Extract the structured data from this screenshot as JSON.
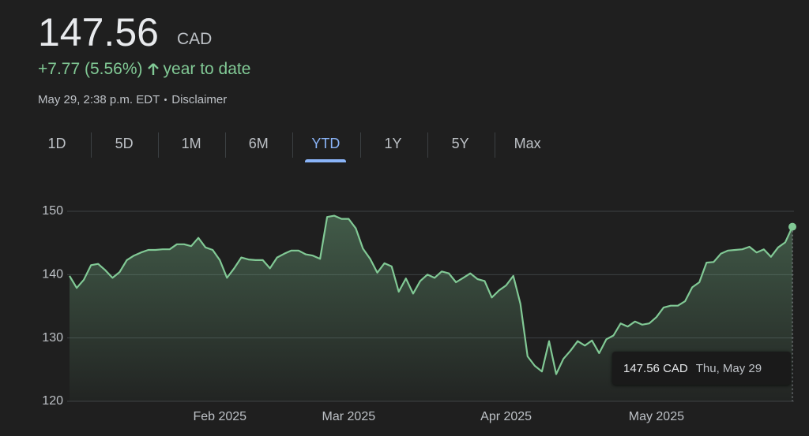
{
  "quote": {
    "price": "147.56",
    "currency": "CAD",
    "change": "+7.77 (5.56%)",
    "period": "year to date",
    "timestamp": "May 29, 2:38 p.m. EDT",
    "disclaimer": "Disclaimer"
  },
  "tabs": {
    "items": [
      "1D",
      "5D",
      "1M",
      "6M",
      "YTD",
      "1Y",
      "5Y",
      "Max"
    ],
    "selected": 4
  },
  "chart_data": {
    "type": "line",
    "color": "#81c995",
    "grid": true,
    "categories": [
      null,
      null,
      null,
      null,
      null,
      null,
      null,
      null,
      null,
      null,
      null,
      null,
      null,
      null,
      null,
      null,
      null,
      null,
      null,
      null,
      null,
      "Feb 2025",
      null,
      null,
      null,
      null,
      null,
      null,
      null,
      null,
      null,
      null,
      null,
      null,
      null,
      null,
      null,
      null,
      null,
      "Mar 2025",
      null,
      null,
      null,
      null,
      null,
      null,
      null,
      null,
      null,
      null,
      null,
      null,
      null,
      null,
      null,
      null,
      null,
      null,
      null,
      null,
      null,
      "Apr 2025",
      null,
      null,
      null,
      null,
      null,
      null,
      null,
      null,
      null,
      null,
      null,
      null,
      null,
      null,
      null,
      null,
      null,
      null,
      null,
      null,
      "May 2025",
      null,
      null,
      null,
      null,
      null,
      null,
      null,
      null,
      null,
      null,
      null,
      null,
      null,
      null,
      null,
      null,
      null,
      null,
      null
    ],
    "values": [
      139.8,
      137.9,
      139.2,
      141.5,
      141.7,
      140.7,
      139.5,
      140.4,
      142.3,
      143.0,
      143.5,
      143.9,
      143.9,
      144.0,
      144.0,
      144.8,
      144.8,
      144.5,
      145.8,
      144.3,
      143.9,
      142.3,
      139.5,
      141.0,
      142.7,
      142.4,
      142.3,
      142.3,
      141.0,
      142.7,
      143.3,
      143.8,
      143.8,
      143.2,
      143.0,
      142.5,
      149.1,
      149.3,
      148.8,
      148.8,
      147.3,
      144.1,
      142.5,
      140.3,
      141.8,
      141.3,
      137.3,
      139.4,
      137.0,
      139.0,
      140.0,
      139.5,
      140.5,
      140.2,
      138.8,
      139.5,
      140.2,
      139.3,
      139.0,
      136.4,
      137.5,
      138.3,
      139.8,
      135.4,
      127.1,
      125.6,
      124.7,
      129.5,
      124.3,
      126.7,
      128.0,
      129.5,
      128.8,
      129.6,
      127.6,
      129.8,
      130.4,
      132.3,
      131.8,
      132.6,
      132.1,
      132.3,
      133.3,
      134.8,
      135.1,
      135.1,
      135.8,
      138.0,
      138.8,
      141.9,
      142.0,
      143.3,
      143.8,
      143.9,
      144.0,
      144.4,
      143.5,
      144.0,
      142.8,
      144.3,
      145.1,
      147.56
    ],
    "ylim": [
      120,
      150
    ],
    "yticks": [
      120,
      130,
      140,
      150
    ],
    "tooltip": {
      "date": "Thu, May 29"
    }
  }
}
